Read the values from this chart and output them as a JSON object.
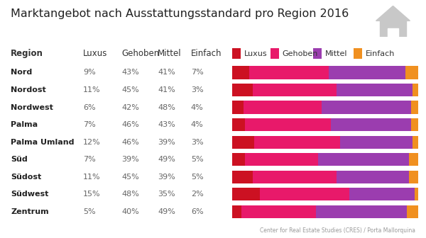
{
  "title": "Marktangebot nach Ausstattungsstandard pro Region 2016",
  "regions": [
    "Nord",
    "Nordost",
    "Nordwest",
    "Palma",
    "Palma Umland",
    "Süd",
    "Südost",
    "Südwest",
    "Zentrum"
  ],
  "luxus": [
    9,
    11,
    6,
    7,
    12,
    7,
    11,
    15,
    5
  ],
  "gehoben": [
    43,
    45,
    42,
    46,
    46,
    39,
    45,
    48,
    40
  ],
  "mittel": [
    41,
    41,
    48,
    43,
    39,
    49,
    39,
    35,
    49
  ],
  "einfach": [
    7,
    3,
    4,
    4,
    3,
    5,
    5,
    2,
    6
  ],
  "color_luxus": "#CC1122",
  "color_gehoben": "#E8196A",
  "color_mittel": "#9B3DAF",
  "color_einfach": "#F09020",
  "col_headers": [
    "Region",
    "Luxus",
    "Gehoben",
    "Mittel",
    "Einfach"
  ],
  "legend_labels": [
    "Luxus",
    "Gehoben",
    "Mittel",
    "Einfach"
  ],
  "bg_color": "#FFFFFF",
  "footer": "Center for Real Estate Studies (CRES) / Porta Mallorquina",
  "title_fontsize": 11.5,
  "header_fontsize": 8.5,
  "data_fontsize": 8.0,
  "region_fontsize": 8.0
}
